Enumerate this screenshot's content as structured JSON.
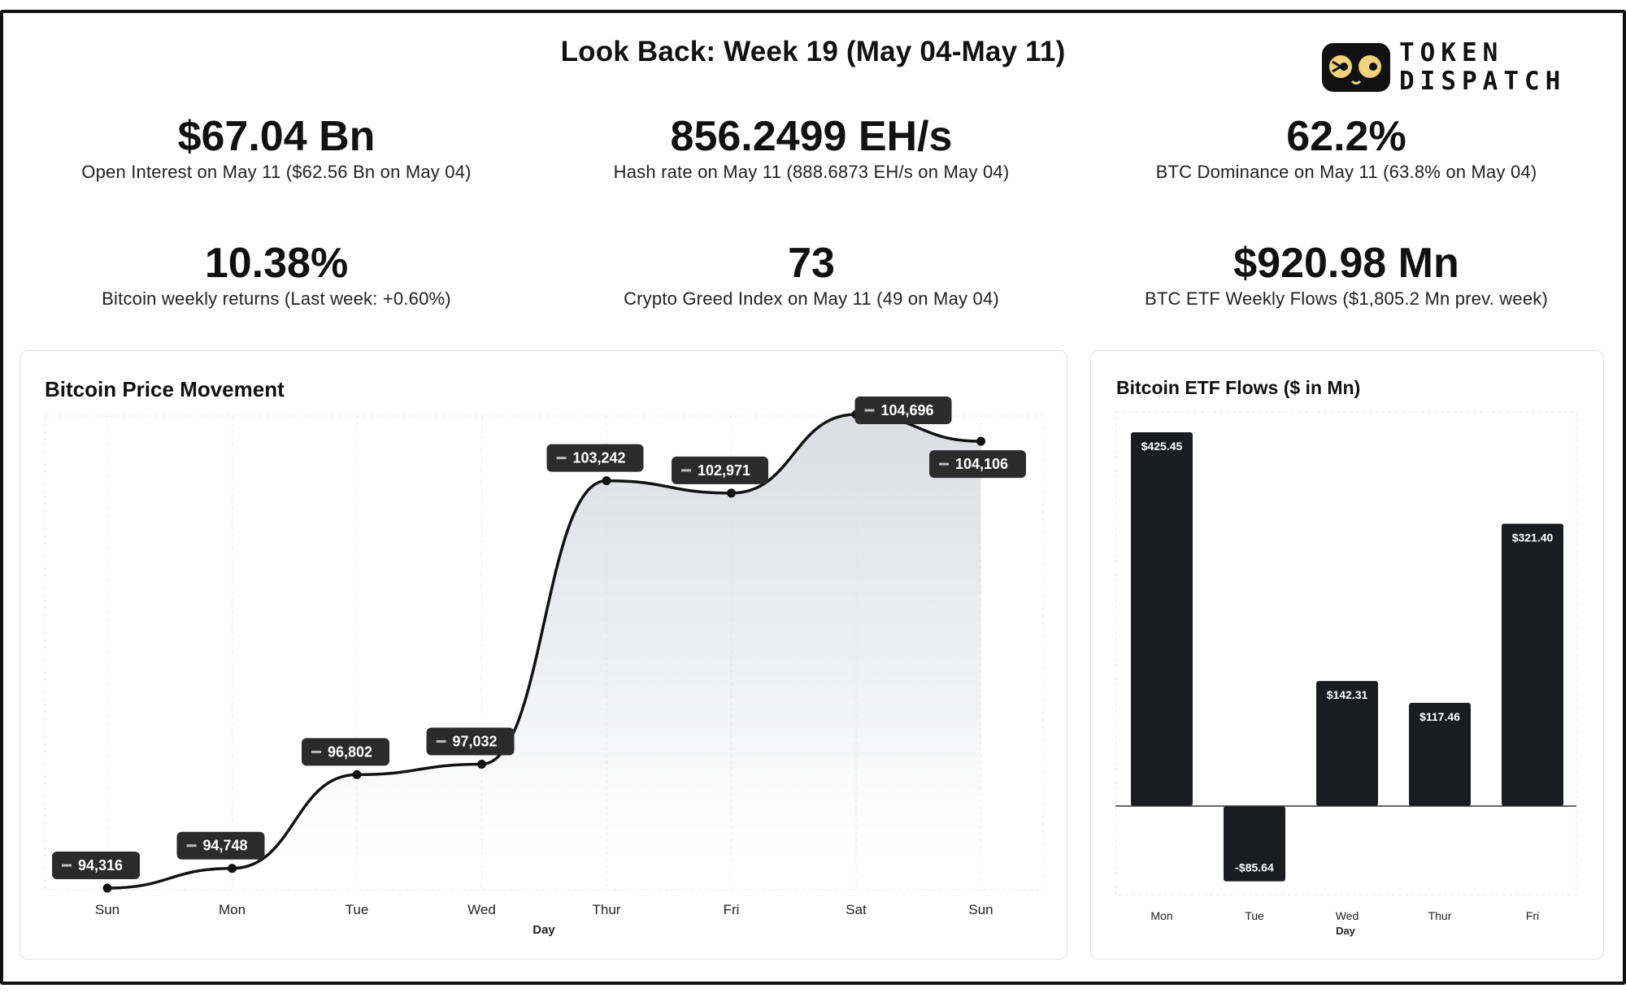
{
  "header": {
    "title": "Look Back: Week 19 (May 04-May 11)",
    "logo_line1": "TOKEN",
    "logo_line2": "DISPATCH"
  },
  "stats": [
    {
      "value": "$67.04 Bn",
      "label": "Open Interest on May 11 ($62.56 Bn on May 04)"
    },
    {
      "value": "856.2499 EH/s",
      "label": "Hash rate on May 11 (888.6873 EH/s on May 04)"
    },
    {
      "value": "62.2%",
      "label": "BTC Dominance on May 11 (63.8% on May 04)"
    },
    {
      "value": "10.38%",
      "label": "Bitcoin weekly returns (Last week: +0.60%)"
    },
    {
      "value": "73",
      "label": "Crypto Greed Index on May 11 (49 on May 04)"
    },
    {
      "value": "$920.98 Mn",
      "label": "BTC ETF Weekly Flows ($1,805.2 Mn prev. week)"
    }
  ],
  "chart_data": [
    {
      "type": "area",
      "title": "Bitcoin Price Movement",
      "xlabel": "Day",
      "ylabel": "",
      "categories": [
        "Sun",
        "Mon",
        "Tue",
        "Wed",
        "Thur",
        "Fri",
        "Sat",
        "Sun"
      ],
      "values": [
        94316,
        94748,
        96802,
        97032,
        103242,
        102971,
        104696,
        104106
      ],
      "value_labels": [
        "94,316",
        "94,748",
        "96,802",
        "97,032",
        "103,242",
        "102,971",
        "104,696",
        "104,106"
      ],
      "ylim": [
        94316,
        104696
      ],
      "grid": true,
      "colors": {
        "line": "#111111",
        "fill": "#d9dbe0",
        "label_bg": "#2b2b2b",
        "label_text": "#ffffff"
      }
    },
    {
      "type": "bar",
      "title": "Bitcoin ETF Flows ($ in Mn)",
      "xlabel": "Day",
      "ylabel": "",
      "categories": [
        "Mon",
        "Tue",
        "Wed",
        "Thur",
        "Fri"
      ],
      "values": [
        425.45,
        -85.64,
        142.31,
        117.46,
        321.4
      ],
      "value_labels": [
        "$425.45",
        "-$85.64",
        "$142.31",
        "$117.46",
        "$321.40"
      ],
      "ylim": [
        -100,
        425.45
      ],
      "grid": false,
      "colors": {
        "bar": "#1b1c1f",
        "label_text": "#ffffff"
      }
    }
  ]
}
